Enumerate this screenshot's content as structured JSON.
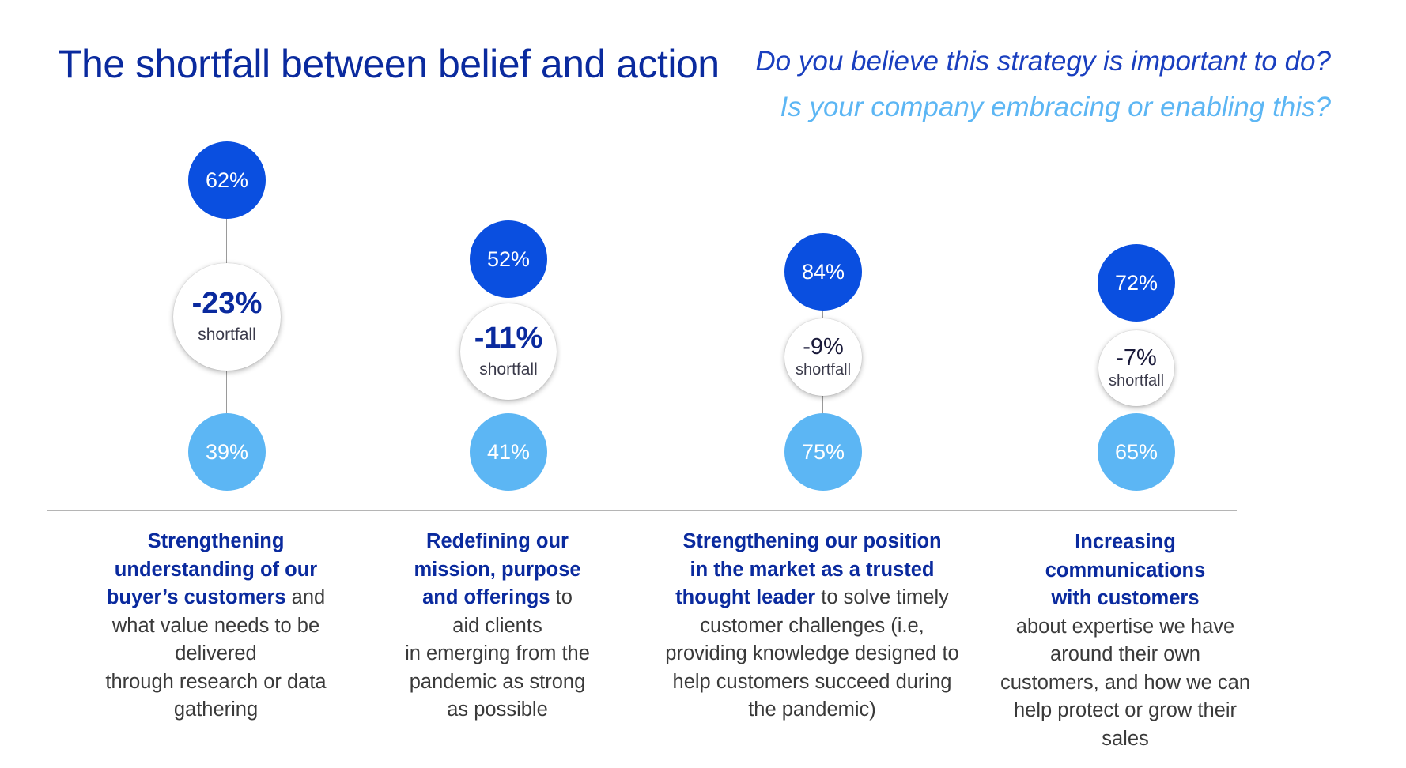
{
  "title": "The shortfall between belief and action",
  "legend": {
    "belief_question": "Do you believe this strategy is important to do?",
    "action_question": "Is your company embracing or enabling this?"
  },
  "colors": {
    "title": "#0a2a9e",
    "belief": "#0a4fe0",
    "action": "#5cb6f4"
  },
  "chart_data": {
    "type": "dumbbell",
    "series": [
      {
        "name": "Do you believe this strategy is important to do?",
        "values": [
          62,
          52,
          84,
          72
        ]
      },
      {
        "name": "Is your company embracing or enabling this?",
        "values": [
          39,
          41,
          75,
          65
        ]
      }
    ]
  },
  "items": [
    {
      "belief": "62%",
      "action": "39%",
      "shortfall_value": "-23%",
      "shortfall_label": "shortfall",
      "desc_lines": [
        [
          {
            "text": "Strengthening",
            "hl": true
          }
        ],
        [
          {
            "text": "understanding of our",
            "hl": true
          }
        ],
        [
          {
            "text": "buyer’s customers",
            "hl": true
          },
          {
            "text": " and",
            "hl": false
          }
        ],
        [
          {
            "text": "what value needs to be",
            "hl": false
          }
        ],
        [
          {
            "text": "delivered",
            "hl": false
          }
        ],
        [
          {
            "text": "through research or data",
            "hl": false
          }
        ],
        [
          {
            "text": "gathering",
            "hl": false
          }
        ]
      ]
    },
    {
      "belief": "52%",
      "action": "41%",
      "shortfall_value": "-11%",
      "shortfall_label": "shortfall",
      "desc_lines": [
        [
          {
            "text": "Redefining our",
            "hl": true
          }
        ],
        [
          {
            "text": "mission, purpose",
            "hl": true
          }
        ],
        [
          {
            "text": "and offerings",
            "hl": true
          },
          {
            "text": " to",
            "hl": false
          }
        ],
        [
          {
            "text": "aid clients",
            "hl": false
          }
        ],
        [
          {
            "text": "in emerging from the",
            "hl": false
          }
        ],
        [
          {
            "text": "pandemic as strong",
            "hl": false
          }
        ],
        [
          {
            "text": "as possible",
            "hl": false
          }
        ]
      ]
    },
    {
      "belief": "84%",
      "action": "75%",
      "shortfall_value": "-9%",
      "shortfall_label": "shortfall",
      "desc_lines": [
        [
          {
            "text": "Strengthening our position",
            "hl": true
          }
        ],
        [
          {
            "text": "in the market as a trusted",
            "hl": true
          }
        ],
        [
          {
            "text": "thought leader",
            "hl": true
          },
          {
            "text": " to solve timely",
            "hl": false
          }
        ],
        [
          {
            "text": "customer challenges (i.e,",
            "hl": false
          }
        ],
        [
          {
            "text": "providing knowledge designed to",
            "hl": false
          }
        ],
        [
          {
            "text": "help customers succeed during",
            "hl": false
          }
        ],
        [
          {
            "text": "the pandemic)",
            "hl": false
          }
        ]
      ]
    },
    {
      "belief": "72%",
      "action": "65%",
      "shortfall_value": "-7%",
      "shortfall_label": "shortfall",
      "desc_lines": [
        [
          {
            "text": "Increasing",
            "hl": true
          }
        ],
        [
          {
            "text": "communications",
            "hl": true
          }
        ],
        [
          {
            "text": "with customers",
            "hl": true
          }
        ],
        [
          {
            "text": "about expertise we have",
            "hl": false
          }
        ],
        [
          {
            "text": "around their own",
            "hl": false
          }
        ],
        [
          {
            "text": "customers, and how we can",
            "hl": false
          }
        ],
        [
          {
            "text": "help protect or grow their",
            "hl": false
          }
        ],
        [
          {
            "text": "sales",
            "hl": false
          }
        ]
      ]
    }
  ]
}
